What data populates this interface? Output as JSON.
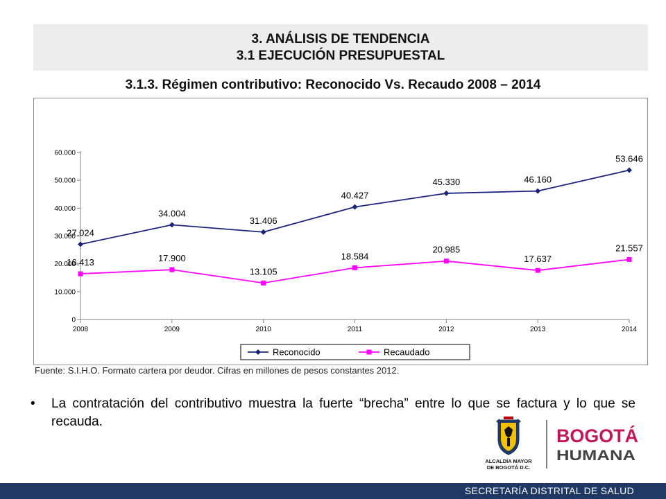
{
  "header": {
    "line1": "3. ANÁLISIS DE TENDENCIA",
    "line2": "3.1 EJECUCIÓN PRESUPUESTAL"
  },
  "subtitle": "3.1.3. Régimen contributivo: Reconocido Vs. Recaudo 2008 – 2014",
  "chart_data": {
    "type": "line",
    "title": "",
    "xlabel": "",
    "ylabel": "",
    "x": [
      "2008",
      "2009",
      "2010",
      "2011",
      "2012",
      "2013",
      "2014"
    ],
    "ylim": [
      0,
      60000
    ],
    "y_ticks": [
      {
        "value": 0,
        "label": "0"
      },
      {
        "value": 10000,
        "label": "10.000"
      },
      {
        "value": 20000,
        "label": "20.000"
      },
      {
        "value": 30000,
        "label": "30.000"
      },
      {
        "value": 40000,
        "label": "40.000"
      },
      {
        "value": 50000,
        "label": "50.000"
      },
      {
        "value": 60000,
        "label": "60.000"
      }
    ],
    "grid": false,
    "legend": "bottom-center",
    "series": [
      {
        "name": "Reconocido",
        "color": "#1a237e",
        "marker": "diamond",
        "values": [
          27024,
          34004,
          31406,
          40427,
          45330,
          46160,
          53646
        ],
        "labels": [
          "27.024",
          "34.004",
          "31.406",
          "40.427",
          "45.330",
          "46.160",
          "53.646"
        ]
      },
      {
        "name": "Recaudado",
        "color": "#ff00ff",
        "marker": "square",
        "values": [
          16413,
          17900,
          13105,
          18584,
          20985,
          17637,
          21557
        ],
        "labels": [
          "16.413",
          "17.900",
          "13.105",
          "18.584",
          "20.985",
          "17.637",
          "21.557"
        ]
      }
    ]
  },
  "source_note": "Fuente: S.I.H.O. Formato cartera por deudor. Cifras en millones de pesos constantes 2012.",
  "bullet": {
    "mark": "•",
    "text": "La contratación del contributivo muestra la fuerte “brecha” entre lo que se factura y lo que se recauda."
  },
  "logos": {
    "alcaldia_line1": "ALCALDÍA MAYOR",
    "alcaldia_line2": "DE BOGOTÁ D.C.",
    "bogota_line1": "BOGOTÁ",
    "bogota_line2": "HUMANA"
  },
  "footer": {
    "text": "SECRETARÍA DISTRITAL DE SALUD",
    "color": "#1f3864"
  }
}
